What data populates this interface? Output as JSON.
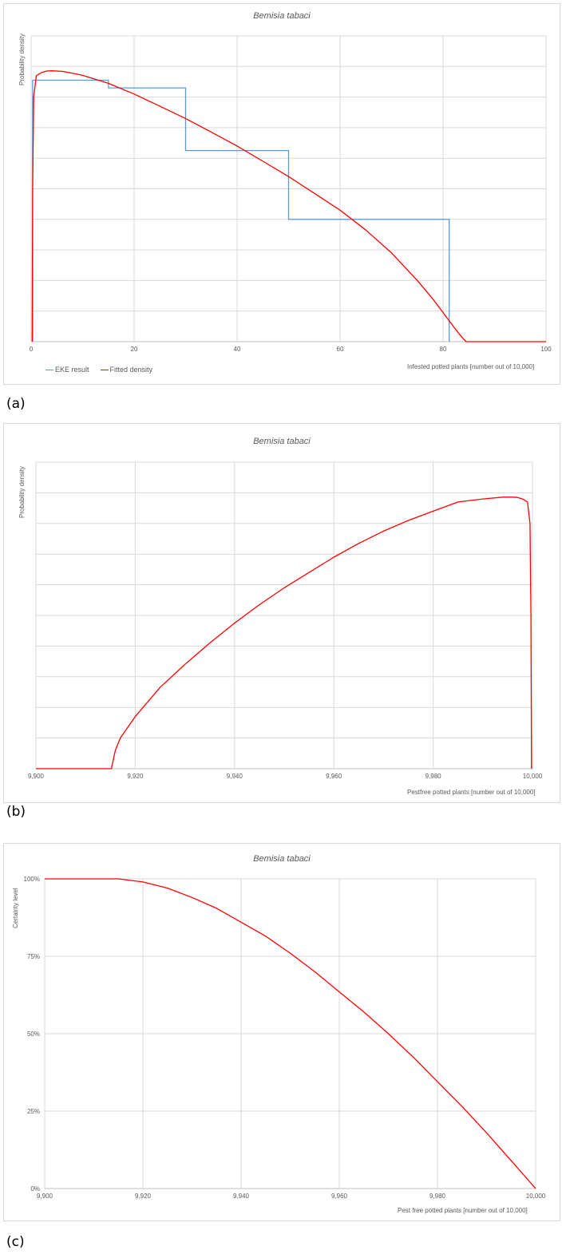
{
  "panel_labels": {
    "a": "(a)",
    "b": "(b)",
    "c": "(c)"
  },
  "colors": {
    "eke": "#5b9bd5",
    "fitted": "#ff0000",
    "grid": "#d9d9d9",
    "axis": "#bfbfbf",
    "text": "#595959"
  },
  "chart_data": [
    {
      "id": "a",
      "type": "line",
      "title": "Bemisia tabaci",
      "xlabel": "Infested potted plants  [number out of 10,000]",
      "ylabel": "Probability density",
      "xlim": [
        0,
        100
      ],
      "ylim": [
        0,
        1
      ],
      "xticks": [
        0,
        20,
        40,
        60,
        80,
        100
      ],
      "xtick_labels": [
        "0",
        "20",
        "40",
        "60",
        "80",
        "100"
      ],
      "yticks": [
        0,
        0.1,
        0.2,
        0.3,
        0.4,
        0.5,
        0.6,
        0.7,
        0.8,
        0.9,
        1.0
      ],
      "ytick_labels": [],
      "legend": {
        "position": "bottom-left",
        "entries": [
          "EKE result",
          "Fitted density"
        ]
      },
      "series": [
        {
          "name": "EKE result",
          "color": "#5b9bd5",
          "step": true,
          "x": [
            0.3,
            0.3,
            15,
            15,
            30,
            30,
            50,
            50,
            81.2,
            81.2
          ],
          "y": [
            0,
            0.855,
            0.855,
            0.83,
            0.83,
            0.625,
            0.625,
            0.4,
            0.4,
            0
          ]
        },
        {
          "name": "Fitted density",
          "color": "#ff0000",
          "x": [
            0.2,
            0.3,
            0.5,
            1,
            2,
            3,
            4,
            6,
            8,
            10,
            15,
            20,
            25,
            30,
            35,
            40,
            45,
            50,
            55,
            60,
            65,
            70,
            75,
            78,
            80,
            82,
            83,
            84,
            84.5,
            100
          ],
          "y": [
            0,
            0.5,
            0.8,
            0.87,
            0.88,
            0.885,
            0.886,
            0.884,
            0.878,
            0.871,
            0.845,
            0.81,
            0.77,
            0.73,
            0.685,
            0.64,
            0.59,
            0.54,
            0.485,
            0.43,
            0.365,
            0.29,
            0.2,
            0.14,
            0.095,
            0.05,
            0.028,
            0.008,
            0,
            0
          ]
        }
      ]
    },
    {
      "id": "b",
      "type": "line",
      "title": "Bemisia tabaci",
      "xlabel": "Pestfree potted plants  [number out of 10,000]",
      "ylabel": "Probability density",
      "xlim": [
        9900,
        10000
      ],
      "ylim": [
        0,
        1
      ],
      "xticks": [
        9900,
        9920,
        9940,
        9960,
        9980,
        10000
      ],
      "xtick_labels": [
        "9,900",
        "9,920",
        "9,940",
        "9,960",
        "9,980",
        "10,000"
      ],
      "yticks": [
        0,
        0.1,
        0.2,
        0.3,
        0.4,
        0.5,
        0.6,
        0.7,
        0.8,
        0.9,
        1.0
      ],
      "ytick_labels": [],
      "legend": null,
      "series": [
        {
          "name": "",
          "color": "#ff0000",
          "x": [
            9900,
            9915.2,
            9916,
            9917,
            9920,
            9925,
            9930,
            9935,
            9940,
            9945,
            9950,
            9955,
            9960,
            9965,
            9970,
            9975,
            9980,
            9985,
            9990,
            9994,
            9996,
            9997,
            9998,
            9999,
            9999.5,
            9999.7,
            9999.8
          ],
          "y": [
            0,
            0,
            0.06,
            0.1,
            0.17,
            0.265,
            0.34,
            0.41,
            0.475,
            0.535,
            0.59,
            0.64,
            0.69,
            0.735,
            0.775,
            0.81,
            0.84,
            0.87,
            0.88,
            0.886,
            0.886,
            0.885,
            0.88,
            0.87,
            0.8,
            0.5,
            0
          ]
        }
      ]
    },
    {
      "id": "c",
      "type": "line",
      "title": "Bemisia tabaci",
      "xlabel": "Pest free potted plants  [number out of 10,000]",
      "ylabel": "Certainty level",
      "xlim": [
        9900,
        10000
      ],
      "ylim": [
        0,
        1
      ],
      "xticks": [
        9900,
        9920,
        9940,
        9960,
        9980,
        10000
      ],
      "xtick_labels": [
        "9,900",
        "9,920",
        "9,940",
        "9,960",
        "9,980",
        "10,000"
      ],
      "yticks": [
        0,
        0.25,
        0.5,
        0.75,
        1.0
      ],
      "ytick_labels": [
        "0%",
        "25%",
        "50%",
        "75%",
        "100%"
      ],
      "legend": null,
      "series": [
        {
          "name": "",
          "color": "#ff0000",
          "x": [
            9900,
            9915,
            9920,
            9925,
            9930,
            9935,
            9940,
            9945,
            9950,
            9955,
            9960,
            9965,
            9970,
            9975,
            9980,
            9985,
            9990,
            9995,
            10000
          ],
          "y": [
            1.0,
            1.0,
            0.99,
            0.97,
            0.94,
            0.905,
            0.86,
            0.815,
            0.76,
            0.7,
            0.635,
            0.57,
            0.5,
            0.425,
            0.345,
            0.265,
            0.18,
            0.09,
            0
          ]
        }
      ]
    }
  ]
}
